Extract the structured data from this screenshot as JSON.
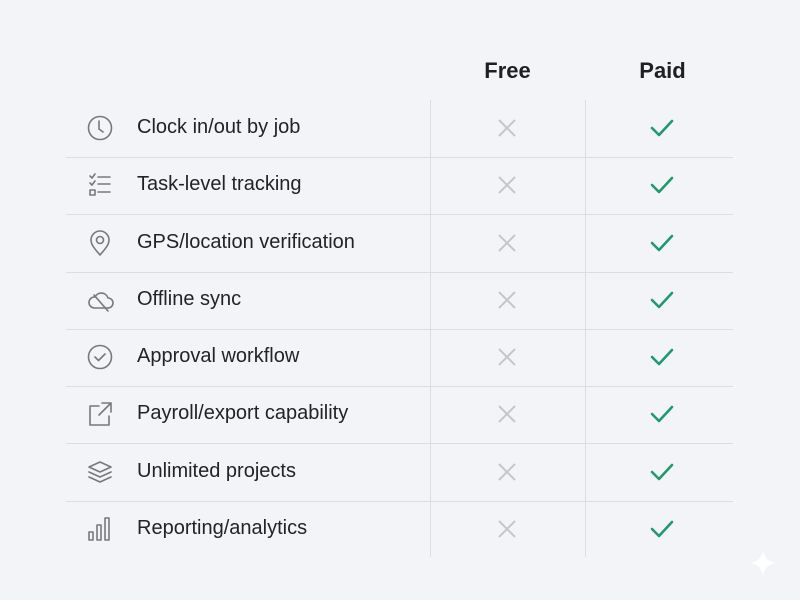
{
  "columns": {
    "free": "Free",
    "paid": "Paid"
  },
  "colors": {
    "check": "#1f9a6e",
    "cross": "#c5c6cb",
    "icon": "#77787d"
  },
  "features": [
    {
      "label": "Clock in/out by job",
      "icon": "clock-icon",
      "free": false,
      "paid": true
    },
    {
      "label": "Task-level tracking",
      "icon": "checklist-icon",
      "free": false,
      "paid": true
    },
    {
      "label": "GPS/location verification",
      "icon": "location-pin-icon",
      "free": false,
      "paid": true
    },
    {
      "label": "Offline sync",
      "icon": "cloud-offline-icon",
      "free": false,
      "paid": true
    },
    {
      "label": "Approval workflow",
      "icon": "check-circle-icon",
      "free": false,
      "paid": true
    },
    {
      "label": "Payroll/export capability",
      "icon": "export-icon",
      "free": false,
      "paid": true
    },
    {
      "label": "Unlimited projects",
      "icon": "layers-icon",
      "free": false,
      "paid": true
    },
    {
      "label": "Reporting/analytics",
      "icon": "bar-chart-icon",
      "free": false,
      "paid": true
    }
  ]
}
